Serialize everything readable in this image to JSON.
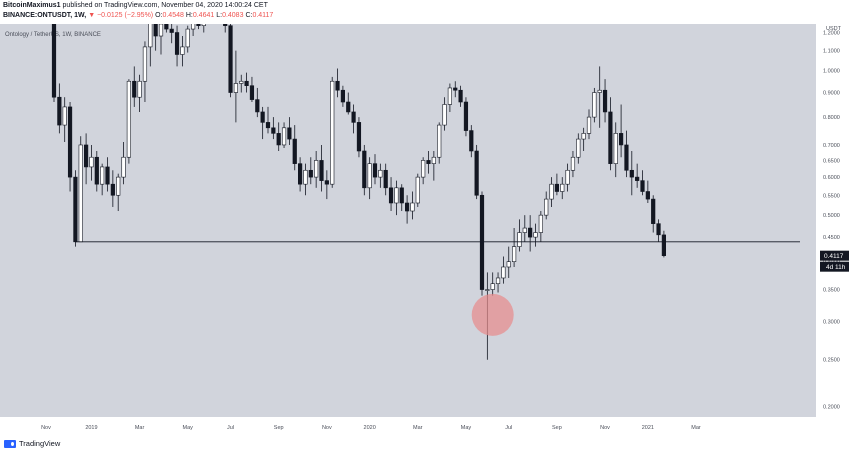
{
  "header": {
    "publisher": "BitcoinMaximus1",
    "published_text": "published on TradingView.com, November 04, 2020 14:00:24 CET",
    "symbol": "BINANCE:ONTUSDT, 1W,",
    "direction_glyph": "▼",
    "change": "−0.0125 (−2.95%)",
    "open_label": "O:",
    "open": "0.4548",
    "high_label": "H:",
    "high": "0.4641",
    "low_label": "L:",
    "low": "0.4083",
    "close_label": "C:",
    "close": "0.4117"
  },
  "chart_title": "Ontology / TetherUS, 1W, BINANCE",
  "footer": {
    "brand": "TradingView",
    "icon": "tradingview-logo-icon"
  },
  "colors": {
    "plot_bg": "#d1d4dc",
    "bull_body": "#ffffff",
    "bear_body": "#131722",
    "wick": "#131722",
    "support_line": "#131722",
    "highlight": "#e88a8a",
    "price_tag_bg": "#131722",
    "price_tag_text": "#ffffff"
  },
  "chart_data": {
    "type": "candlestick",
    "title": "Ontology / TetherUS, 1W, BINANCE",
    "y_axis": {
      "unit": "USDT",
      "scale": "log",
      "range": [
        0.19,
        1.25
      ],
      "ticks": [
        "1.2000",
        "1.1000",
        "1.0000",
        "0.9000",
        "0.8000",
        "0.7000",
        "0.6500",
        "0.6000",
        "0.5500",
        "0.5000",
        "0.4500",
        "0.4000",
        "0.3500",
        "0.3000",
        "0.2500",
        "0.2000"
      ]
    },
    "x_axis": {
      "labels": [
        {
          "label": "Nov",
          "week": -1.5
        },
        {
          "label": "2019",
          "week": 7
        },
        {
          "label": "Mar",
          "week": 16
        },
        {
          "label": "May",
          "week": 25
        },
        {
          "label": "Jul",
          "week": 33
        },
        {
          "label": "Sep",
          "week": 42
        },
        {
          "label": "Nov",
          "week": 51
        },
        {
          "label": "2020",
          "week": 59
        },
        {
          "label": "Mar",
          "week": 68
        },
        {
          "label": "May",
          "week": 77
        },
        {
          "label": "Jul",
          "week": 85
        },
        {
          "label": "Sep",
          "week": 94
        },
        {
          "label": "Nov",
          "week": 103
        },
        {
          "label": "2021",
          "week": 111
        },
        {
          "label": "Mar",
          "week": 120
        }
      ]
    },
    "candles": [
      [
        1.4,
        1.45,
        0.86,
        0.88
      ],
      [
        0.88,
        0.94,
        0.74,
        0.77
      ],
      [
        0.77,
        0.88,
        0.71,
        0.84
      ],
      [
        0.84,
        0.86,
        0.56,
        0.6
      ],
      [
        0.6,
        0.62,
        0.43,
        0.44
      ],
      [
        0.44,
        0.73,
        0.44,
        0.7
      ],
      [
        0.7,
        0.74,
        0.58,
        0.63
      ],
      [
        0.63,
        0.7,
        0.59,
        0.66
      ],
      [
        0.66,
        0.68,
        0.56,
        0.58
      ],
      [
        0.58,
        0.64,
        0.55,
        0.63
      ],
      [
        0.63,
        0.66,
        0.56,
        0.58
      ],
      [
        0.58,
        0.62,
        0.52,
        0.55
      ],
      [
        0.55,
        0.61,
        0.51,
        0.6
      ],
      [
        0.6,
        0.71,
        0.58,
        0.66
      ],
      [
        0.66,
        0.96,
        0.64,
        0.95
      ],
      [
        0.95,
        1.02,
        0.84,
        0.88
      ],
      [
        0.88,
        0.98,
        0.82,
        0.95
      ],
      [
        0.95,
        1.15,
        0.86,
        1.12
      ],
      [
        1.12,
        1.32,
        1.02,
        1.28
      ],
      [
        1.28,
        1.3,
        1.1,
        1.18
      ],
      [
        1.18,
        1.32,
        1.08,
        1.25
      ],
      [
        1.25,
        1.3,
        1.2,
        1.22
      ],
      [
        1.22,
        1.3,
        1.14,
        1.2
      ],
      [
        1.2,
        1.24,
        1.02,
        1.08
      ],
      [
        1.08,
        1.18,
        1.02,
        1.12
      ],
      [
        1.12,
        1.24,
        1.09,
        1.22
      ],
      [
        1.22,
        1.3,
        1.18,
        1.26
      ],
      [
        1.26,
        1.32,
        1.22,
        1.24
      ],
      [
        1.24,
        1.3,
        1.2,
        1.28
      ],
      [
        1.28,
        1.32,
        1.25,
        1.29
      ],
      [
        1.29,
        1.32,
        1.26,
        1.28
      ],
      [
        1.28,
        1.31,
        1.26,
        1.3
      ],
      [
        1.3,
        1.32,
        1.2,
        1.24
      ],
      [
        1.24,
        1.26,
        0.88,
        0.9
      ],
      [
        0.9,
        1.1,
        0.78,
        0.94
      ],
      [
        0.94,
        0.98,
        0.9,
        0.95
      ],
      [
        0.95,
        0.99,
        0.9,
        0.93
      ],
      [
        0.93,
        0.97,
        0.86,
        0.87
      ],
      [
        0.87,
        0.92,
        0.8,
        0.82
      ],
      [
        0.82,
        0.84,
        0.72,
        0.78
      ],
      [
        0.78,
        0.84,
        0.74,
        0.76
      ],
      [
        0.76,
        0.8,
        0.72,
        0.74
      ],
      [
        0.74,
        0.78,
        0.68,
        0.7
      ],
      [
        0.7,
        0.78,
        0.69,
        0.76
      ],
      [
        0.76,
        0.8,
        0.7,
        0.72
      ],
      [
        0.72,
        0.77,
        0.62,
        0.64
      ],
      [
        0.64,
        0.66,
        0.56,
        0.58
      ],
      [
        0.58,
        0.64,
        0.55,
        0.62
      ],
      [
        0.62,
        0.66,
        0.58,
        0.6
      ],
      [
        0.6,
        0.68,
        0.57,
        0.65
      ],
      [
        0.65,
        0.7,
        0.56,
        0.59
      ],
      [
        0.59,
        0.62,
        0.54,
        0.58
      ],
      [
        0.58,
        0.97,
        0.57,
        0.95
      ],
      [
        0.95,
        1.01,
        0.88,
        0.91
      ],
      [
        0.91,
        0.93,
        0.84,
        0.86
      ],
      [
        0.86,
        0.9,
        0.81,
        0.82
      ],
      [
        0.82,
        0.85,
        0.74,
        0.78
      ],
      [
        0.78,
        0.8,
        0.66,
        0.68
      ],
      [
        0.68,
        0.7,
        0.55,
        0.57
      ],
      [
        0.57,
        0.66,
        0.54,
        0.64
      ],
      [
        0.64,
        0.67,
        0.58,
        0.6
      ],
      [
        0.6,
        0.64,
        0.57,
        0.62
      ],
      [
        0.62,
        0.64,
        0.55,
        0.57
      ],
      [
        0.57,
        0.6,
        0.51,
        0.53
      ],
      [
        0.53,
        0.59,
        0.5,
        0.57
      ],
      [
        0.57,
        0.58,
        0.51,
        0.53
      ],
      [
        0.53,
        0.55,
        0.48,
        0.51
      ],
      [
        0.51,
        0.56,
        0.49,
        0.53
      ],
      [
        0.53,
        0.61,
        0.52,
        0.6
      ],
      [
        0.6,
        0.66,
        0.58,
        0.65
      ],
      [
        0.65,
        0.68,
        0.61,
        0.64
      ],
      [
        0.64,
        0.68,
        0.59,
        0.66
      ],
      [
        0.66,
        0.78,
        0.64,
        0.77
      ],
      [
        0.77,
        0.88,
        0.75,
        0.85
      ],
      [
        0.85,
        0.94,
        0.82,
        0.92
      ],
      [
        0.92,
        0.95,
        0.88,
        0.91
      ],
      [
        0.91,
        0.93,
        0.84,
        0.86
      ],
      [
        0.86,
        0.88,
        0.73,
        0.75
      ],
      [
        0.75,
        0.77,
        0.66,
        0.68
      ],
      [
        0.68,
        0.7,
        0.54,
        0.55
      ],
      [
        0.55,
        0.56,
        0.34,
        0.35
      ],
      [
        0.35,
        0.38,
        0.25,
        0.35
      ],
      [
        0.35,
        0.38,
        0.34,
        0.36
      ],
      [
        0.36,
        0.38,
        0.345,
        0.37
      ],
      [
        0.37,
        0.41,
        0.36,
        0.39
      ],
      [
        0.39,
        0.43,
        0.37,
        0.4
      ],
      [
        0.4,
        0.47,
        0.39,
        0.43
      ],
      [
        0.43,
        0.49,
        0.42,
        0.46
      ],
      [
        0.46,
        0.5,
        0.44,
        0.47
      ],
      [
        0.47,
        0.5,
        0.42,
        0.45
      ],
      [
        0.45,
        0.48,
        0.43,
        0.46
      ],
      [
        0.46,
        0.51,
        0.44,
        0.5
      ],
      [
        0.5,
        0.56,
        0.49,
        0.54
      ],
      [
        0.54,
        0.6,
        0.52,
        0.58
      ],
      [
        0.58,
        0.61,
        0.55,
        0.56
      ],
      [
        0.56,
        0.6,
        0.54,
        0.58
      ],
      [
        0.58,
        0.64,
        0.56,
        0.62
      ],
      [
        0.62,
        0.68,
        0.6,
        0.66
      ],
      [
        0.66,
        0.74,
        0.64,
        0.72
      ],
      [
        0.72,
        0.76,
        0.68,
        0.74
      ],
      [
        0.74,
        0.83,
        0.72,
        0.8
      ],
      [
        0.8,
        0.92,
        0.78,
        0.9
      ],
      [
        0.9,
        1.02,
        0.76,
        0.91
      ],
      [
        0.91,
        0.96,
        0.78,
        0.82
      ],
      [
        0.82,
        0.88,
        0.62,
        0.64
      ],
      [
        0.64,
        0.78,
        0.6,
        0.74
      ],
      [
        0.74,
        0.85,
        0.66,
        0.7
      ],
      [
        0.7,
        0.75,
        0.6,
        0.62
      ],
      [
        0.62,
        0.68,
        0.55,
        0.6
      ],
      [
        0.6,
        0.64,
        0.57,
        0.59
      ],
      [
        0.59,
        0.62,
        0.55,
        0.56
      ],
      [
        0.56,
        0.59,
        0.53,
        0.54
      ],
      [
        0.54,
        0.55,
        0.46,
        0.48
      ],
      [
        0.48,
        0.49,
        0.44,
        0.455
      ],
      [
        0.4548,
        0.4641,
        0.4083,
        0.4117
      ]
    ],
    "support_level": 0.44,
    "current_price": {
      "value": "0.4117",
      "countdown": "4d 11h"
    },
    "highlight": {
      "week": 82,
      "price": 0.31,
      "shape": "circle"
    },
    "grid": false,
    "legend": "none"
  }
}
